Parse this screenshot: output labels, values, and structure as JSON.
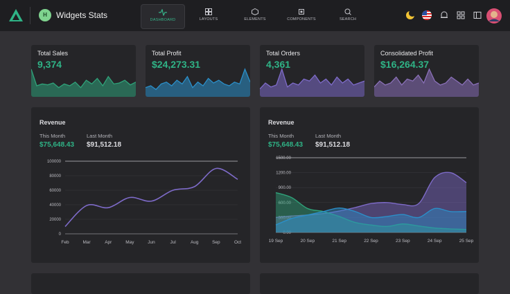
{
  "header": {
    "logo_letter": "H",
    "title": "Widgets Stats",
    "nav": [
      "DASHBOARD",
      "LAYOUTS",
      "ELEMENTS",
      "COMPONENTS",
      "SEARCH"
    ]
  },
  "cards": [
    {
      "title": "Total Sales",
      "value": "9,374",
      "color": "#2fa37a",
      "values": [
        30,
        12,
        14,
        13,
        15,
        10,
        14,
        12,
        16,
        10,
        18,
        14,
        20,
        12,
        22,
        14,
        15,
        18,
        13,
        16
      ]
    },
    {
      "title": "Total Profit",
      "value": "$24,273.31",
      "color": "#2b8fc9",
      "values": [
        10,
        12,
        8,
        14,
        16,
        12,
        18,
        14,
        22,
        10,
        16,
        12,
        20,
        15,
        18,
        14,
        12,
        16,
        14,
        30,
        16
      ]
    },
    {
      "title": "Total Orders",
      "value": "4,361",
      "color": "#7e6bc9",
      "values": [
        8,
        14,
        10,
        12,
        28,
        10,
        14,
        12,
        18,
        16,
        22,
        14,
        18,
        12,
        20,
        14,
        18,
        12,
        14,
        16
      ]
    },
    {
      "title": "Consolidated Profit",
      "value": "$16,264.37",
      "color": "#8a70b8",
      "values": [
        10,
        16,
        12,
        14,
        20,
        12,
        18,
        16,
        22,
        14,
        28,
        16,
        12,
        14,
        20,
        16,
        12,
        18,
        12,
        14
      ]
    }
  ],
  "charts": [
    {
      "type": "line",
      "title": "Revenue",
      "this_month_label": "This Month",
      "this_month": "$75,648.43",
      "last_month_label": "Last Month",
      "last_month": "$91,512.18",
      "categories": [
        "Feb",
        "Mar",
        "Apr",
        "May",
        "Jun",
        "Jul",
        "Aug",
        "Sep",
        "Oct"
      ],
      "series": [
        {
          "color": "#7e6bc9",
          "values": [
            10000,
            39000,
            36000,
            50000,
            45000,
            60000,
            65000,
            90000,
            75000
          ]
        }
      ],
      "ylim": [
        0,
        100000
      ],
      "yticks": [
        0,
        20000,
        40000,
        60000,
        80000,
        100000
      ],
      "grid": true
    },
    {
      "type": "area",
      "title": "Revenue",
      "this_month_label": "This Month",
      "this_month": "$75,648.43",
      "last_month_label": "Last Month",
      "last_month": "$91,512.18",
      "categories": [
        "19 Sep",
        null,
        "20 Sep",
        null,
        "21 Sep",
        null,
        "22 Sep",
        null,
        "23 Sep",
        null,
        "24 Sep",
        null,
        "25 Sep"
      ],
      "series": [
        {
          "color": "#7e6bc9",
          "values": [
            300,
            330,
            350,
            380,
            430,
            500,
            580,
            600,
            560,
            580,
            1100,
            1200,
            1000
          ]
        },
        {
          "color": "#2fa37a",
          "values": [
            800,
            700,
            480,
            420,
            320,
            200,
            150,
            120,
            170,
            130,
            90,
            70,
            60
          ]
        },
        {
          "color": "#2b8fc9",
          "values": [
            150,
            280,
            350,
            420,
            490,
            420,
            300,
            320,
            360,
            300,
            480,
            420,
            420
          ]
        }
      ],
      "ylim": [
        0,
        1500
      ],
      "yticks": [
        {
          "value": 0,
          "label": "0.00"
        },
        {
          "value": 300,
          "label": "300.00"
        },
        {
          "value": 600,
          "label": "600.00"
        },
        {
          "value": 900,
          "label": "900.00"
        },
        {
          "value": 1200,
          "label": "1200.00"
        },
        {
          "value": 1500,
          "label": "1500.00"
        }
      ],
      "grid": true
    }
  ]
}
